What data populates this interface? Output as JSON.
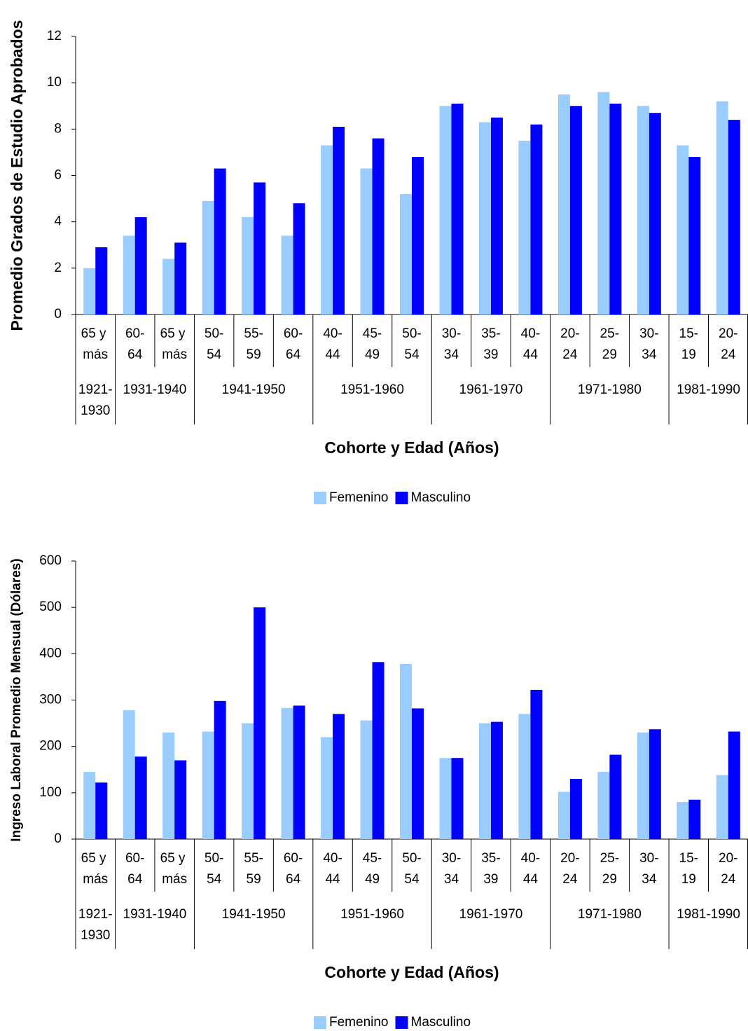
{
  "chart_data": [
    {
      "type": "bar",
      "y_label": "Promedio Grados de Estudio Aprobados",
      "x_label": "Cohorte y Edad (Años)",
      "groups": [
        {
          "label": "1921-1930",
          "categories": [
            "65 y más"
          ]
        },
        {
          "label": "1931-1940",
          "categories": [
            "60-64",
            "65 y más"
          ]
        },
        {
          "label": "1941-1950",
          "categories": [
            "50-54",
            "55-59",
            "60-64"
          ]
        },
        {
          "label": "1951-1960",
          "categories": [
            "40-44",
            "45-49",
            "50-54"
          ]
        },
        {
          "label": "1961-1970",
          "categories": [
            "30-34",
            "35-39",
            "40-44"
          ]
        },
        {
          "label": "1971-1980",
          "categories": [
            "20-24",
            "25-29",
            "30-34"
          ]
        },
        {
          "label": "1981-1990",
          "categories": [
            "15-19",
            "20-24"
          ]
        }
      ],
      "series": [
        {
          "name": "Femenino",
          "color": "#99CCFF",
          "values": [
            2.0,
            3.4,
            2.4,
            4.9,
            4.2,
            3.4,
            7.3,
            6.3,
            5.2,
            9.0,
            8.3,
            7.5,
            9.5,
            9.6,
            9.0,
            7.3,
            9.2
          ]
        },
        {
          "name": "Masculino",
          "color": "#0000FF",
          "values": [
            2.9,
            4.2,
            3.1,
            6.3,
            5.7,
            4.8,
            8.1,
            7.6,
            6.8,
            9.1,
            8.5,
            8.2,
            9.0,
            9.1,
            8.7,
            6.8,
            8.4
          ]
        }
      ],
      "ylim": [
        0,
        12
      ],
      "yticks": [
        0,
        2,
        4,
        6,
        8,
        10,
        12
      ],
      "legend": "bottom"
    },
    {
      "type": "bar",
      "y_label": "Ingreso Laboral Promedio Mensual (Dólares)",
      "x_label": "Cohorte y Edad (Años)",
      "groups": [
        {
          "label": "1921-1930",
          "categories": [
            "65 y más"
          ]
        },
        {
          "label": "1931-1940",
          "categories": [
            "60-64",
            "65 y más"
          ]
        },
        {
          "label": "1941-1950",
          "categories": [
            "50-54",
            "55-59",
            "60-64"
          ]
        },
        {
          "label": "1951-1960",
          "categories": [
            "40-44",
            "45-49",
            "50-54"
          ]
        },
        {
          "label": "1961-1970",
          "categories": [
            "30-34",
            "35-39",
            "40-44"
          ]
        },
        {
          "label": "1971-1980",
          "categories": [
            "20-24",
            "25-29",
            "30-34"
          ]
        },
        {
          "label": "1981-1990",
          "categories": [
            "15-19",
            "20-24"
          ]
        }
      ],
      "series": [
        {
          "name": "Femenino",
          "color": "#99CCFF",
          "values": [
            145,
            278,
            230,
            232,
            250,
            283,
            220,
            256,
            378,
            175,
            250,
            270,
            102,
            145,
            230,
            80,
            138
          ]
        },
        {
          "name": "Masculino",
          "color": "#0000FF",
          "values": [
            122,
            178,
            170,
            298,
            500,
            288,
            270,
            382,
            282,
            175,
            253,
            322,
            130,
            182,
            237,
            85,
            232
          ]
        }
      ],
      "ylim": [
        0,
        600
      ],
      "yticks": [
        0,
        100,
        200,
        300,
        400,
        500,
        600
      ],
      "legend": "bottom"
    }
  ]
}
